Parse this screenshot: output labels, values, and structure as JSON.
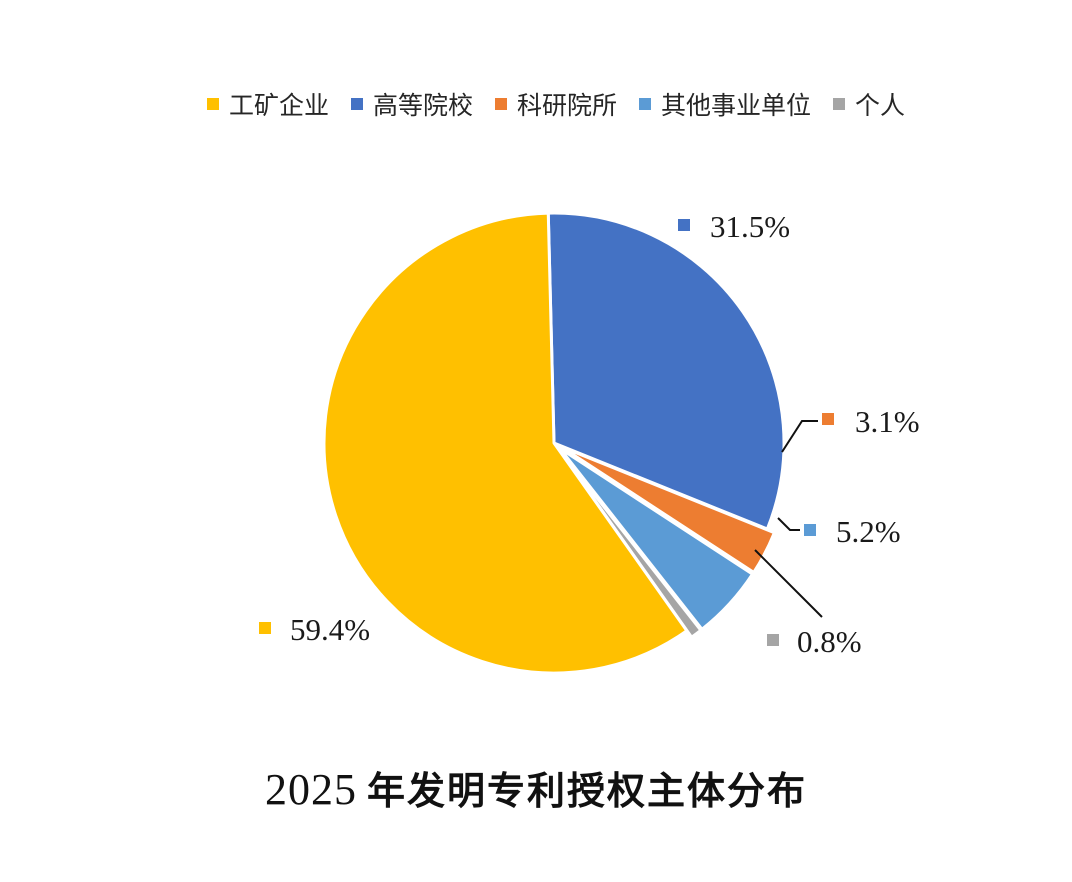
{
  "chart_data": {
    "type": "pie",
    "title_year": "2025",
    "title_text": "年发明专利授权主体分布",
    "legend_position": "top",
    "categories": [
      "工矿企业",
      "高等院校",
      "科研院所",
      "其他事业单位",
      "个人"
    ],
    "values": [
      59.4,
      31.5,
      3.1,
      5.2,
      0.8
    ],
    "value_labels": [
      "59.4%",
      "31.5%",
      "3.1%",
      "5.2%",
      "0.8%"
    ],
    "colors": [
      "#FFC000",
      "#4472C4",
      "#ED7D31",
      "#5B9BD5",
      "#A5A5A5"
    ],
    "slice_order_clockwise_from_top": [
      "高等院校",
      "科研院所",
      "其他事业单位",
      "个人",
      "工矿企业"
    ]
  }
}
